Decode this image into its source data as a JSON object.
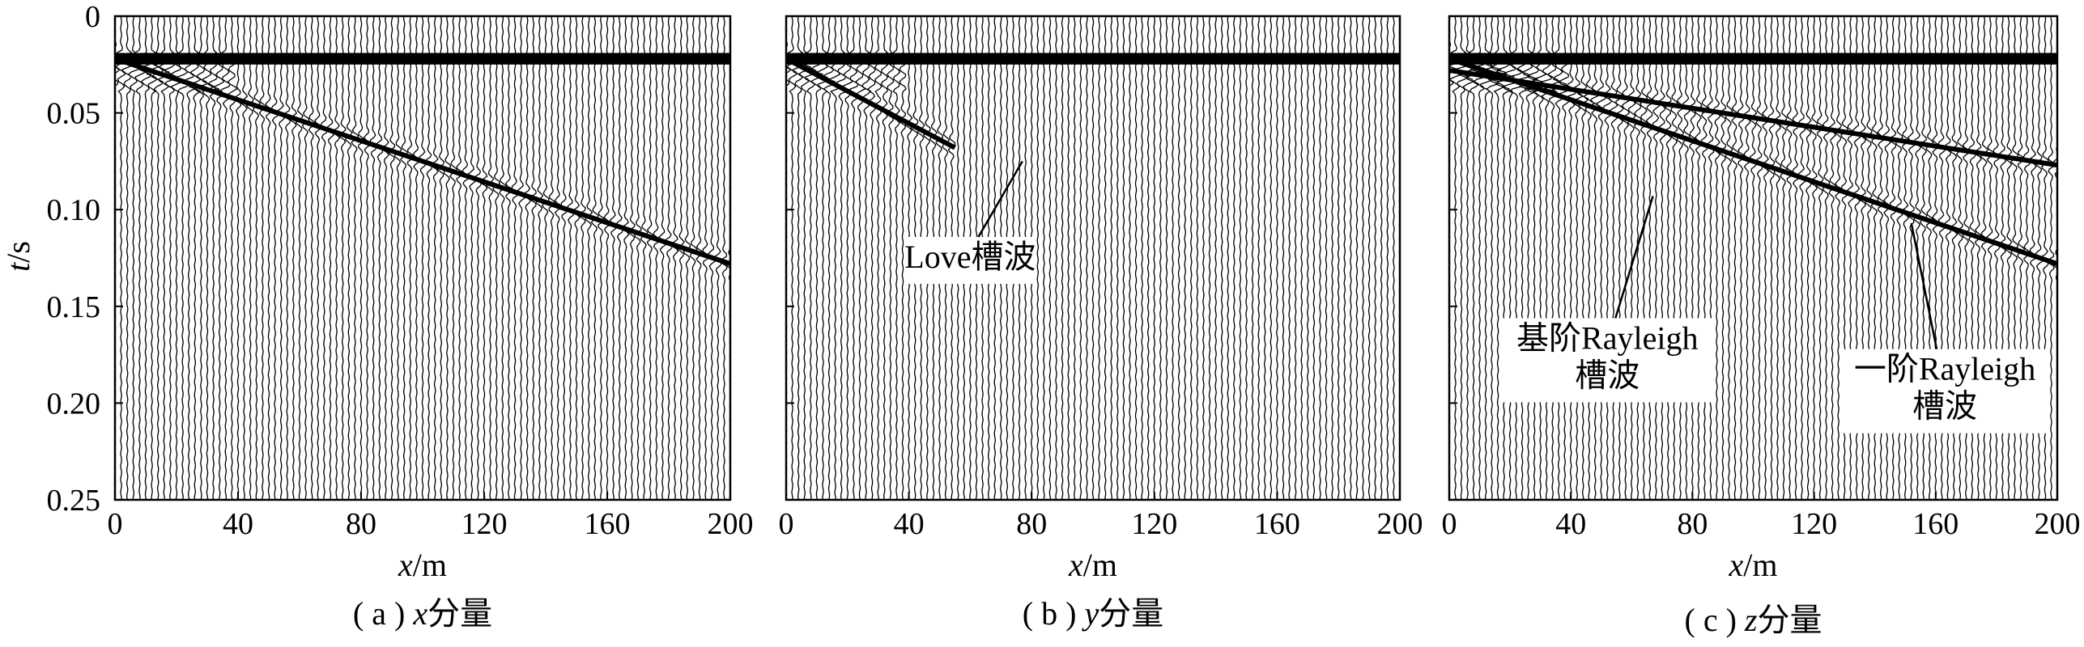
{
  "figure": {
    "ylabel": "t/s",
    "ylabel_var": "t",
    "ylabel_unit": "/s"
  },
  "chart_data": [
    {
      "type": "seismogram",
      "caption": "( a ) x分量",
      "caption_prefix": "( a ) ",
      "caption_var": "x",
      "caption_suffix": "分量",
      "xlabel": "x/m",
      "xlabel_var": "x",
      "xlabel_unit": "/m",
      "ylabel": "t/s",
      "xlim": [
        0,
        200
      ],
      "ylim": [
        0.25,
        0
      ],
      "x_ticks": [
        0,
        40,
        80,
        120,
        160,
        200
      ],
      "x_tick_labels": [
        "0",
        "40",
        "80",
        "120",
        "160",
        "200"
      ],
      "y_ticks": [
        0,
        0.05,
        0.1,
        0.15,
        0.2,
        0.25
      ],
      "y_tick_labels": [
        "0",
        "0.05",
        "0.10",
        "0.15",
        "0.20",
        "0.25"
      ],
      "trace_spacing_m": 2,
      "wavefronts": [
        {
          "x": [
            0,
            200
          ],
          "t": [
            0.022,
            0.128
          ]
        }
      ],
      "annotations": []
    },
    {
      "type": "seismogram",
      "caption": "( b ) y分量",
      "caption_prefix": "( b ) ",
      "caption_var": "y",
      "caption_suffix": "分量",
      "xlabel": "x/m",
      "xlabel_var": "x",
      "xlabel_unit": "/m",
      "xlim": [
        0,
        200
      ],
      "ylim": [
        0.25,
        0
      ],
      "x_ticks": [
        0,
        40,
        80,
        120,
        160,
        200
      ],
      "x_tick_labels": [
        "0",
        "40",
        "80",
        "120",
        "160",
        "200"
      ],
      "trace_spacing_m": 2,
      "wavefronts": [
        {
          "x": [
            0,
            55
          ],
          "t": [
            0.022,
            0.068
          ]
        }
      ],
      "annotations": [
        {
          "lines": [
            "Love槽波"
          ],
          "anchor": {
            "x": 77,
            "t": 0.075
          },
          "text_pos": {
            "x": 60,
            "t": 0.13
          }
        }
      ]
    },
    {
      "type": "seismogram",
      "caption": "( c ) z分量",
      "caption_prefix": "( c ) ",
      "caption_var": "z",
      "caption_suffix": "分量",
      "xlabel": "x/m",
      "xlabel_var": "x",
      "xlabel_unit": "/m",
      "xlim": [
        0,
        200
      ],
      "ylim": [
        0.25,
        0
      ],
      "x_ticks": [
        0,
        40,
        80,
        120,
        160,
        200
      ],
      "x_tick_labels": [
        "0",
        "40",
        "80",
        "120",
        "160",
        "200"
      ],
      "trace_spacing_m": 2,
      "wavefronts": [
        {
          "x": [
            0,
            200
          ],
          "t": [
            0.022,
            0.128
          ]
        },
        {
          "x": [
            0,
            200
          ],
          "t": [
            0.028,
            0.077
          ]
        }
      ],
      "annotations": [
        {
          "lines": [
            "基阶Rayleigh",
            "槽波"
          ],
          "anchor": {
            "x": 67,
            "t": 0.093
          },
          "text_pos": {
            "x": 52,
            "t": 0.172
          }
        },
        {
          "lines": [
            "一阶Rayleigh",
            "槽波"
          ],
          "anchor": {
            "x": 152,
            "t": 0.107
          },
          "text_pos": {
            "x": 163,
            "t": 0.188
          }
        }
      ]
    }
  ]
}
